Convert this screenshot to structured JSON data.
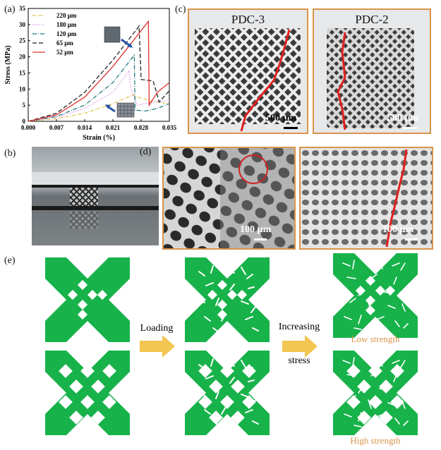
{
  "labels": {
    "a": "(a)",
    "b": "(b)",
    "c": "(c)",
    "d": "(d)",
    "e": "(e)"
  },
  "chart_data": {
    "type": "line",
    "title": "",
    "xlabel": "Strain (%)",
    "ylabel": "Stress (MPa)",
    "xlim": [
      0,
      0.035
    ],
    "ylim": [
      0,
      35
    ],
    "xticks": [
      "0.000",
      "0.007",
      "0.014",
      "0.021",
      "0.028",
      "0.035"
    ],
    "yticks": [
      "0",
      "5",
      "10",
      "15",
      "20",
      "25",
      "30",
      "35"
    ],
    "legend": "top-left",
    "series": [
      {
        "name": "220 µm",
        "color": "#e0c040",
        "dash": "4,2,1,2",
        "points": [
          [
            0,
            0
          ],
          [
            0.007,
            0.8
          ],
          [
            0.014,
            2.5
          ],
          [
            0.021,
            5.5
          ],
          [
            0.026,
            8.2
          ],
          [
            0.027,
            7.6
          ],
          [
            0.03,
            6.5
          ],
          [
            0.033,
            5.8
          ],
          [
            0.035,
            5.5
          ]
        ]
      },
      {
        "name": "180 µm",
        "color": "#d070e0",
        "dash": "1,2",
        "points": [
          [
            0,
            0
          ],
          [
            0.007,
            1.2
          ],
          [
            0.014,
            4
          ],
          [
            0.021,
            9
          ],
          [
            0.025,
            15.5
          ],
          [
            0.0255,
            10
          ],
          [
            0.027,
            5
          ],
          [
            0.03,
            5.8
          ],
          [
            0.033,
            6.2
          ],
          [
            0.035,
            6.5
          ]
        ]
      },
      {
        "name": "120 µm",
        "color": "#1f7a7a",
        "dash": "6,2,1,2",
        "points": [
          [
            0,
            0
          ],
          [
            0.007,
            1.5
          ],
          [
            0.014,
            5
          ],
          [
            0.021,
            12
          ],
          [
            0.0263,
            20.5
          ],
          [
            0.0265,
            3.5
          ],
          [
            0.029,
            3.2
          ],
          [
            0.032,
            4
          ],
          [
            0.035,
            5.5
          ]
        ]
      },
      {
        "name": "65 µm",
        "color": "#222222",
        "dash": "6,3",
        "points": [
          [
            0,
            0
          ],
          [
            0.007,
            2.5
          ],
          [
            0.014,
            9
          ],
          [
            0.021,
            19
          ],
          [
            0.0275,
            29.5
          ],
          [
            0.028,
            13
          ],
          [
            0.031,
            12.5
          ],
          [
            0.0325,
            6
          ],
          [
            0.035,
            9.5
          ]
        ]
      },
      {
        "name": "52 µm",
        "color": "#e03030",
        "dash": "",
        "points": [
          [
            0,
            0
          ],
          [
            0.007,
            2
          ],
          [
            0.014,
            7.5
          ],
          [
            0.021,
            17
          ],
          [
            0.0298,
            31
          ],
          [
            0.03,
            5
          ],
          [
            0.032,
            9
          ],
          [
            0.035,
            12
          ]
        ]
      }
    ]
  },
  "panel_c": {
    "left_title": "PDC-3",
    "left_scale": "500 µm",
    "right_title": "PDC-2",
    "right_scale": "500 µm"
  },
  "panel_d": {
    "left_scale": "100 µm",
    "right_scale": "100 µm"
  },
  "panel_e": {
    "loading": "Loading",
    "increasing_1": "Increasing",
    "increasing_2": "stress",
    "low_strength": "Low strength",
    "high_strength": "High strength",
    "accent": "#d9944a",
    "green": "#17b24a",
    "arrow": "#f2c650"
  }
}
